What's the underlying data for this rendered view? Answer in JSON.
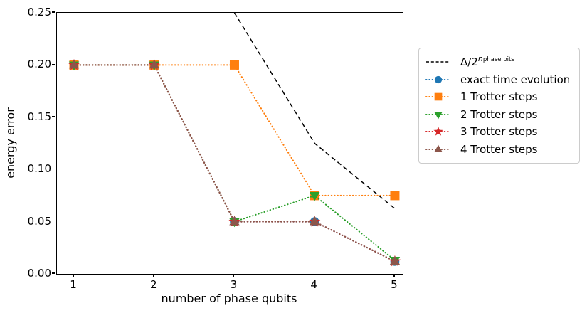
{
  "chart_data": {
    "type": "line",
    "title": "",
    "xlabel": "number of phase qubits",
    "ylabel": "energy error",
    "xlim": [
      0.787,
      5.098
    ],
    "ylim": [
      0.0,
      0.25
    ],
    "xtick_values": [
      1,
      2,
      3,
      4,
      5
    ],
    "xtick_labels": [
      "1",
      "2",
      "3",
      "4",
      "5"
    ],
    "ytick_values": [
      0.0,
      0.05,
      0.1,
      0.15,
      0.2,
      0.25
    ],
    "ytick_labels": [
      "0.00",
      "0.05",
      "0.10",
      "0.15",
      "0.20",
      "0.25"
    ],
    "grid": false,
    "legend": {
      "position": "outside upper right",
      "border_color": "#cccccc"
    },
    "series": [
      {
        "label": {
          "base": "Δ/2",
          "sup_italic": "n",
          "sup_small": "phase bits"
        },
        "x": [
          3,
          4,
          5
        ],
        "y": [
          0.25,
          0.125,
          0.0625
        ],
        "color": "#000000",
        "linestyle": "dashed",
        "marker": "none"
      },
      {
        "label": {
          "base": "exact time evolution"
        },
        "x": [
          1,
          2,
          3,
          4,
          5
        ],
        "y": [
          0.2,
          0.2,
          0.05,
          0.05,
          0.012
        ],
        "color": "#1f77b4",
        "linestyle": "dotted",
        "marker": "circle"
      },
      {
        "label": {
          "base": "1 Trotter steps"
        },
        "x": [
          1,
          2,
          3,
          4,
          5
        ],
        "y": [
          0.2,
          0.2,
          0.2,
          0.075,
          0.075
        ],
        "color": "#ff7f0e",
        "linestyle": "dotted",
        "marker": "square"
      },
      {
        "label": {
          "base": "2 Trotter steps"
        },
        "x": [
          1,
          2,
          3,
          4,
          5
        ],
        "y": [
          0.2,
          0.2,
          0.05,
          0.075,
          0.013
        ],
        "color": "#2ca02c",
        "linestyle": "dotted",
        "marker": "triangle-down"
      },
      {
        "label": {
          "base": "3 Trotter steps"
        },
        "x": [
          1,
          2,
          3,
          4,
          5
        ],
        "y": [
          0.2,
          0.2,
          0.05,
          0.05,
          0.012
        ],
        "color": "#d62728",
        "linestyle": "dotted",
        "marker": "star"
      },
      {
        "label": {
          "base": "4 Trotter steps"
        },
        "x": [
          1,
          2,
          3,
          4,
          5
        ],
        "y": [
          0.2,
          0.2,
          0.05,
          0.05,
          0.012
        ],
        "color": "#8c564b",
        "linestyle": "dotted",
        "marker": "triangle-up"
      }
    ]
  }
}
